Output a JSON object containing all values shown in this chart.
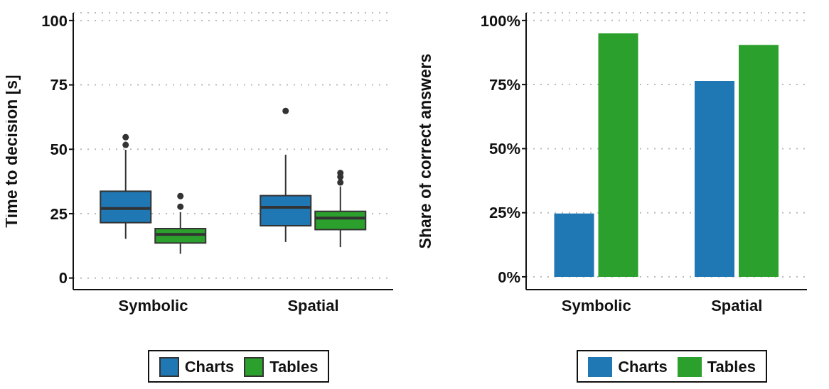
{
  "chart_data": [
    {
      "type": "box",
      "ylabel": "Time to decision [s]",
      "categories": [
        "Symbolic",
        "Spatial"
      ],
      "ylim": [
        -4.5,
        103
      ],
      "yticks": [
        0,
        25,
        50,
        75,
        100
      ],
      "grid": "y",
      "legend": "bottom",
      "series": [
        {
          "name": "Charts",
          "color": "#1f77b4",
          "boxes": [
            {
              "low": 15.2,
              "q1": 21.5,
              "median": 27.0,
              "q3": 33.7,
              "high": 49.8,
              "outliers": [
                51.7,
                54.7
              ]
            },
            {
              "low": 14.0,
              "q1": 20.3,
              "median": 27.5,
              "q3": 32.0,
              "high": 47.9,
              "outliers": [
                64.9
              ]
            }
          ]
        },
        {
          "name": "Tables",
          "color": "#2ca02c",
          "boxes": [
            {
              "low": 9.4,
              "q1": 13.6,
              "median": 16.9,
              "q3": 19.2,
              "high": 25.6,
              "outliers": [
                27.7,
                31.8
              ]
            },
            {
              "low": 12.0,
              "q1": 18.8,
              "median": 23.3,
              "q3": 25.9,
              "high": 35.6,
              "outliers": [
                37.1,
                39.3,
                40.8
              ]
            }
          ]
        }
      ]
    },
    {
      "type": "bar",
      "ylabel": "Share of correct answers",
      "categories": [
        "Symbolic",
        "Spatial"
      ],
      "ylim": [
        -5,
        103
      ],
      "yticks": [
        {
          "value": 0,
          "label": "0%"
        },
        {
          "value": 25,
          "label": "25%"
        },
        {
          "value": 50,
          "label": "50%"
        },
        {
          "value": 75,
          "label": "75%"
        },
        {
          "value": 100,
          "label": "100%"
        }
      ],
      "grid": "y",
      "legend": "bottom",
      "series": [
        {
          "name": "Charts",
          "color": "#1f77b4",
          "values": [
            24.7,
            76.4
          ]
        },
        {
          "name": "Tables",
          "color": "#2ca02c",
          "values": [
            95.0,
            90.5
          ]
        }
      ]
    }
  ]
}
